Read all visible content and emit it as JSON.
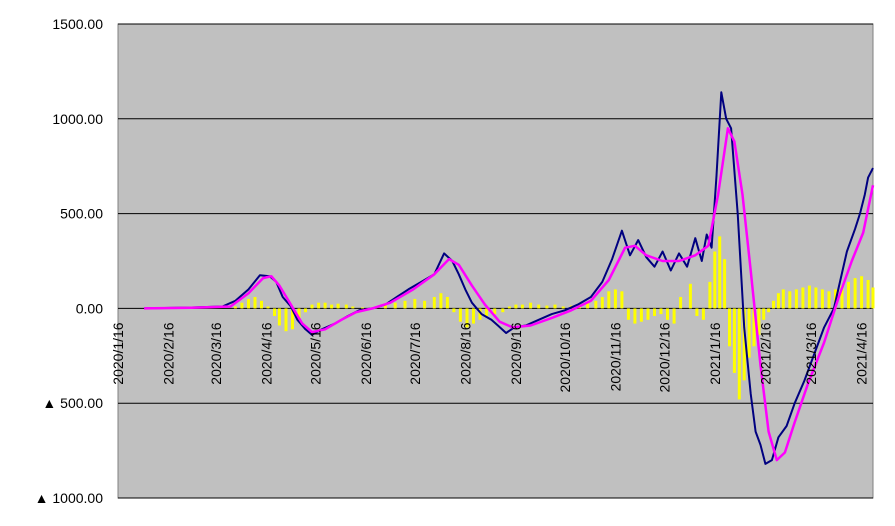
{
  "chart_data": {
    "type": "line",
    "plot_background": "#c0c0c0",
    "grid": true,
    "ylim": [
      -1000,
      1500
    ],
    "y_ticks": [
      {
        "value": 1500,
        "label": "1500.00"
      },
      {
        "value": 1000,
        "label": "1000.00"
      },
      {
        "value": 500,
        "label": "500.00"
      },
      {
        "value": 0,
        "label": "0.00"
      },
      {
        "value": -500,
        "label": "▲ 500.00"
      },
      {
        "value": -1000,
        "label": "▲ 1000.00"
      }
    ],
    "x_ticks": [
      "2020/1/16",
      "2020/2/16",
      "2020/3/16",
      "2020/4/16",
      "2020/5/16",
      "2020/6/16",
      "2020/7/16",
      "2020/8/16",
      "2020/9/16",
      "2020/10/16",
      "2020/11/16",
      "2020/12/16",
      "2021/1/16",
      "2021/2/16",
      "2021/3/16",
      "2021/4/16"
    ],
    "xlim": [
      "2020/1/16",
      "2021/4/23"
    ],
    "series": [
      {
        "color": "#000080",
        "style": "line",
        "points": [
          [
            "2020/2/1",
            0
          ],
          [
            "2020/3/1",
            5
          ],
          [
            "2020/3/20",
            10
          ],
          [
            "2020/3/28",
            40
          ],
          [
            "2020/4/5",
            100
          ],
          [
            "2020/4/12",
            175
          ],
          [
            "2020/4/18",
            170
          ],
          [
            "2020/4/22",
            140
          ],
          [
            "2020/4/26",
            60
          ],
          [
            "2020/5/1",
            10
          ],
          [
            "2020/5/5",
            -60
          ],
          [
            "2020/5/10",
            -110
          ],
          [
            "2020/5/14",
            -140
          ],
          [
            "2020/5/20",
            -110
          ],
          [
            "2020/5/28",
            -80
          ],
          [
            "2020/6/5",
            -40
          ],
          [
            "2020/6/12",
            -10
          ],
          [
            "2020/6/20",
            0
          ],
          [
            "2020/6/28",
            20
          ],
          [
            "2020/7/5",
            60
          ],
          [
            "2020/7/12",
            100
          ],
          [
            "2020/7/20",
            140
          ],
          [
            "2020/7/28",
            180
          ],
          [
            "2020/8/3",
            290
          ],
          [
            "2020/8/8",
            250
          ],
          [
            "2020/8/12",
            180
          ],
          [
            "2020/8/16",
            100
          ],
          [
            "2020/8/20",
            30
          ],
          [
            "2020/8/26",
            -30
          ],
          [
            "2020/9/1",
            -60
          ],
          [
            "2020/9/5",
            -90
          ],
          [
            "2020/9/10",
            -130
          ],
          [
            "2020/9/15",
            -100
          ],
          [
            "2020/9/22",
            -90
          ],
          [
            "2020/9/30",
            -60
          ],
          [
            "2020/10/8",
            -30
          ],
          [
            "2020/10/16",
            -10
          ],
          [
            "2020/10/24",
            20
          ],
          [
            "2020/11/1",
            60
          ],
          [
            "2020/11/8",
            140
          ],
          [
            "2020/11/14",
            260
          ],
          [
            "2020/11/20",
            410
          ],
          [
            "2020/11/25",
            280
          ],
          [
            "2020/11/30",
            360
          ],
          [
            "2020/12/5",
            270
          ],
          [
            "2020/12/10",
            220
          ],
          [
            "2020/12/15",
            300
          ],
          [
            "2020/12/20",
            200
          ],
          [
            "2020/12/25",
            290
          ],
          [
            "2020/12/30",
            220
          ],
          [
            "2021/1/4",
            370
          ],
          [
            "2021/1/8",
            250
          ],
          [
            "2021/1/11",
            390
          ],
          [
            "2021/1/14",
            320
          ],
          [
            "2021/1/17",
            700
          ],
          [
            "2021/1/20",
            1140
          ],
          [
            "2021/1/23",
            1000
          ],
          [
            "2021/1/26",
            950
          ],
          [
            "2021/1/30",
            500
          ],
          [
            "2021/2/3",
            -100
          ],
          [
            "2021/2/7",
            -450
          ],
          [
            "2021/2/10",
            -650
          ],
          [
            "2021/2/13",
            -720
          ],
          [
            "2021/2/16",
            -820
          ],
          [
            "2021/2/20",
            -800
          ],
          [
            "2021/2/24",
            -680
          ],
          [
            "2021/3/1",
            -620
          ],
          [
            "2021/3/6",
            -500
          ],
          [
            "2021/3/12",
            -380
          ],
          [
            "2021/3/18",
            -240
          ],
          [
            "2021/3/24",
            -100
          ],
          [
            "2021/3/30",
            0
          ],
          [
            "2021/4/3",
            150
          ],
          [
            "2021/4/7",
            300
          ],
          [
            "2021/4/12",
            420
          ],
          [
            "2021/4/15",
            500
          ],
          [
            "2021/4/18",
            600
          ],
          [
            "2021/4/20",
            690
          ],
          [
            "2021/4/23",
            740
          ]
        ]
      },
      {
        "color": "#ff00ff",
        "style": "line",
        "points": [
          [
            "2020/2/1",
            0
          ],
          [
            "2020/3/1",
            3
          ],
          [
            "2020/3/25",
            10
          ],
          [
            "2020/4/5",
            80
          ],
          [
            "2020/4/14",
            160
          ],
          [
            "2020/4/19",
            170
          ],
          [
            "2020/4/24",
            120
          ],
          [
            "2020/5/1",
            20
          ],
          [
            "2020/5/8",
            -80
          ],
          [
            "2020/5/14",
            -125
          ],
          [
            "2020/5/22",
            -110
          ],
          [
            "2020/6/1",
            -60
          ],
          [
            "2020/6/10",
            -20
          ],
          [
            "2020/6/20",
            0
          ],
          [
            "2020/7/1",
            30
          ],
          [
            "2020/7/15",
            100
          ],
          [
            "2020/7/28",
            180
          ],
          [
            "2020/8/6",
            260
          ],
          [
            "2020/8/12",
            230
          ],
          [
            "2020/8/20",
            120
          ],
          [
            "2020/8/28",
            20
          ],
          [
            "2020/9/6",
            -70
          ],
          [
            "2020/9/14",
            -100
          ],
          [
            "2020/9/25",
            -90
          ],
          [
            "2020/10/8",
            -50
          ],
          [
            "2020/10/20",
            -10
          ],
          [
            "2020/11/1",
            40
          ],
          [
            "2020/11/12",
            150
          ],
          [
            "2020/11/22",
            320
          ],
          [
            "2020/11/28",
            330
          ],
          [
            "2020/12/5",
            280
          ],
          [
            "2020/12/15",
            250
          ],
          [
            "2020/12/25",
            250
          ],
          [
            "2021/1/4",
            280
          ],
          [
            "2021/1/12",
            330
          ],
          [
            "2021/1/18",
            600
          ],
          [
            "2021/1/24",
            950
          ],
          [
            "2021/1/28",
            880
          ],
          [
            "2021/2/2",
            600
          ],
          [
            "2021/2/7",
            200
          ],
          [
            "2021/2/13",
            -300
          ],
          [
            "2021/2/18",
            -650
          ],
          [
            "2021/2/23",
            -800
          ],
          [
            "2021/2/28",
            -760
          ],
          [
            "2021/3/6",
            -600
          ],
          [
            "2021/3/14",
            -400
          ],
          [
            "2021/3/24",
            -180
          ],
          [
            "2021/4/2",
            60
          ],
          [
            "2021/4/10",
            250
          ],
          [
            "2021/4/17",
            400
          ],
          [
            "2021/4/23",
            650
          ]
        ]
      },
      {
        "color": "#ffff00",
        "style": "bars",
        "points": [
          [
            "2020/3/28",
            10
          ],
          [
            "2020/4/1",
            30
          ],
          [
            "2020/4/5",
            50
          ],
          [
            "2020/4/9",
            60
          ],
          [
            "2020/4/13",
            40
          ],
          [
            "2020/4/17",
            10
          ],
          [
            "2020/4/21",
            -40
          ],
          [
            "2020/4/24",
            -90
          ],
          [
            "2020/4/28",
            -120
          ],
          [
            "2020/5/2",
            -110
          ],
          [
            "2020/5/6",
            -60
          ],
          [
            "2020/5/10",
            -20
          ],
          [
            "2020/5/14",
            20
          ],
          [
            "2020/5/18",
            30
          ],
          [
            "2020/5/22",
            30
          ],
          [
            "2020/5/26",
            20
          ],
          [
            "2020/5/30",
            25
          ],
          [
            "2020/6/4",
            20
          ],
          [
            "2020/6/8",
            10
          ],
          [
            "2020/6/14",
            5
          ],
          [
            "2020/6/22",
            10
          ],
          [
            "2020/6/28",
            20
          ],
          [
            "2020/7/4",
            30
          ],
          [
            "2020/7/10",
            40
          ],
          [
            "2020/7/16",
            50
          ],
          [
            "2020/7/22",
            40
          ],
          [
            "2020/7/28",
            60
          ],
          [
            "2020/8/1",
            80
          ],
          [
            "2020/8/5",
            60
          ],
          [
            "2020/8/9",
            -20
          ],
          [
            "2020/8/13",
            -70
          ],
          [
            "2020/8/17",
            -100
          ],
          [
            "2020/8/21",
            -80
          ],
          [
            "2020/8/25",
            -60
          ],
          [
            "2020/8/29",
            -40
          ],
          [
            "2020/9/3",
            -30
          ],
          [
            "2020/9/8",
            -20
          ],
          [
            "2020/9/12",
            10
          ],
          [
            "2020/9/16",
            20
          ],
          [
            "2020/9/20",
            20
          ],
          [
            "2020/9/25",
            30
          ],
          [
            "2020/9/30",
            20
          ],
          [
            "2020/10/5",
            15
          ],
          [
            "2020/10/10",
            20
          ],
          [
            "2020/10/15",
            10
          ],
          [
            "2020/10/20",
            15
          ],
          [
            "2020/10/25",
            20
          ],
          [
            "2020/10/30",
            30
          ],
          [
            "2020/11/4",
            40
          ],
          [
            "2020/11/8",
            60
          ],
          [
            "2020/11/12",
            90
          ],
          [
            "2020/11/16",
            100
          ],
          [
            "2020/11/20",
            90
          ],
          [
            "2020/11/24",
            -60
          ],
          [
            "2020/11/28",
            -80
          ],
          [
            "2020/12/2",
            -70
          ],
          [
            "2020/12/6",
            -60
          ],
          [
            "2020/12/10",
            -40
          ],
          [
            "2020/12/14",
            -30
          ],
          [
            "2020/12/18",
            -60
          ],
          [
            "2020/12/22",
            -80
          ],
          [
            "2020/12/26",
            60
          ],
          [
            "2021/1/1",
            130
          ],
          [
            "2021/1/5",
            -40
          ],
          [
            "2021/1/9",
            -60
          ],
          [
            "2021/1/13",
            140
          ],
          [
            "2021/1/16",
            300
          ],
          [
            "2021/1/19",
            380
          ],
          [
            "2021/1/22",
            260
          ],
          [
            "2021/1/25",
            -200
          ],
          [
            "2021/1/28",
            -340
          ],
          [
            "2021/1/31",
            -480
          ],
          [
            "2021/2/3",
            -380
          ],
          [
            "2021/2/6",
            -260
          ],
          [
            "2021/2/9",
            -200
          ],
          [
            "2021/2/12",
            -140
          ],
          [
            "2021/2/15",
            -60
          ],
          [
            "2021/2/18",
            -20
          ],
          [
            "2021/2/21",
            40
          ],
          [
            "2021/2/24",
            80
          ],
          [
            "2021/2/27",
            100
          ],
          [
            "2021/3/3",
            90
          ],
          [
            "2021/3/7",
            100
          ],
          [
            "2021/3/11",
            110
          ],
          [
            "2021/3/15",
            120
          ],
          [
            "2021/3/19",
            110
          ],
          [
            "2021/3/23",
            100
          ],
          [
            "2021/3/27",
            90
          ],
          [
            "2021/3/31",
            100
          ],
          [
            "2021/4/4",
            120
          ],
          [
            "2021/4/8",
            140
          ],
          [
            "2021/4/12",
            160
          ],
          [
            "2021/4/16",
            170
          ],
          [
            "2021/4/20",
            150
          ],
          [
            "2021/4/23",
            110
          ]
        ]
      }
    ]
  }
}
